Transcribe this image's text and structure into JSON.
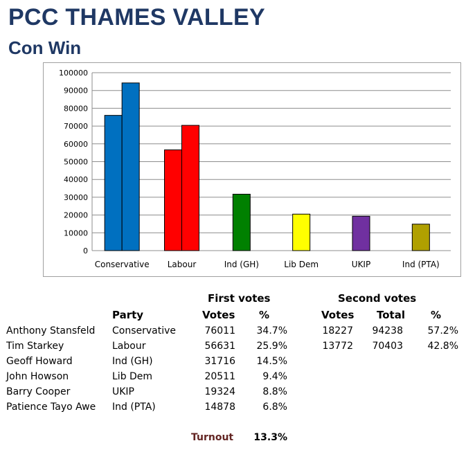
{
  "header": {
    "title": "PCC THAMES VALLEY",
    "subtitle": "Con Win"
  },
  "chart_data": {
    "type": "bar",
    "categories": [
      "Conservative",
      "Labour",
      "Ind (GH)",
      "Lib Dem",
      "UKIP",
      "Ind (PTA)"
    ],
    "series": [
      {
        "values": [
          76011,
          56631,
          31716,
          20511,
          19324,
          14878
        ]
      },
      {
        "values": [
          94238,
          70403,
          null,
          null,
          null,
          null
        ]
      }
    ],
    "colors": [
      "#0070c0",
      "#ff0000",
      "#008000",
      "#ffff00",
      "#7030a0",
      "#b0a000"
    ],
    "ylim": [
      0,
      100000
    ],
    "yticks": [
      0,
      10000,
      20000,
      30000,
      40000,
      50000,
      60000,
      70000,
      80000,
      90000,
      100000
    ],
    "ytick_labels": [
      "0",
      "10000",
      "20000",
      "30000",
      "40000",
      "50000",
      "60000",
      "70000",
      "80000",
      "90000",
      "100000"
    ],
    "grid": true,
    "title": "",
    "xlabel": "",
    "ylabel": ""
  },
  "table": {
    "first_votes_header": "First votes",
    "second_votes_header": "Second votes",
    "col_party": "Party",
    "col_votes": "Votes",
    "col_pct": "%",
    "col_total": "Total",
    "rows": [
      {
        "candidate": "Anthony Stansfeld",
        "party": "Conservative",
        "votes": "76011",
        "pct": "34.7%",
        "second_votes": "18227",
        "total": "94238",
        "second_pct": "57.2%"
      },
      {
        "candidate": "Tim Starkey",
        "party": "Labour",
        "votes": "56631",
        "pct": "25.9%",
        "second_votes": "13772",
        "total": "70403",
        "second_pct": "42.8%"
      },
      {
        "candidate": "Geoff Howard",
        "party": "Ind (GH)",
        "votes": "31716",
        "pct": "14.5%"
      },
      {
        "candidate": "John Howson",
        "party": "Lib Dem",
        "votes": "20511",
        "pct": "9.4%"
      },
      {
        "candidate": "Barry Cooper",
        "party": "UKIP",
        "votes": "19324",
        "pct": "8.8%"
      },
      {
        "candidate": "Patience Tayo Awe",
        "party": "Ind (PTA)",
        "votes": "14878",
        "pct": "6.8%"
      }
    ],
    "turnout_label": "Turnout",
    "turnout_value": "13.3%"
  }
}
